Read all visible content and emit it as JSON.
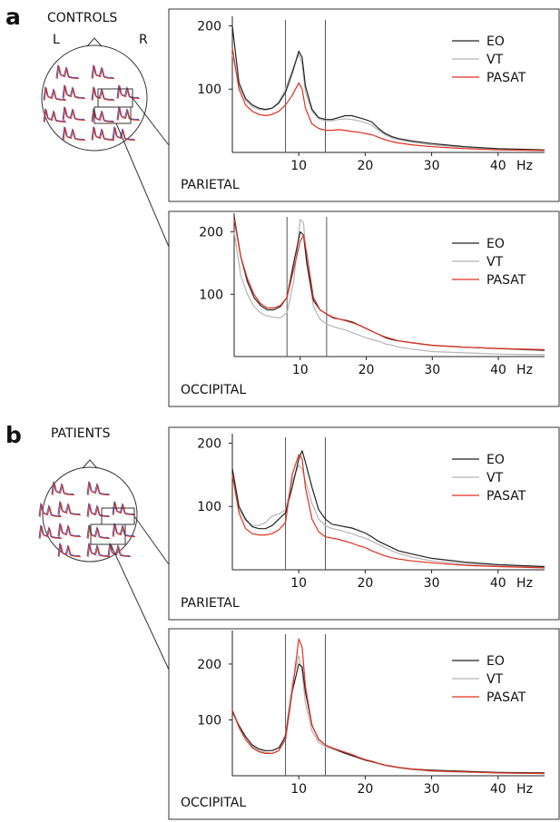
{
  "figure": {
    "groups": [
      {
        "letter": "a",
        "label": "CONTROLS",
        "left_label": "L",
        "right_label": "R"
      },
      {
        "letter": "b",
        "label": "PATIENTS"
      }
    ]
  },
  "colors": {
    "EO": "#222222",
    "VT": "#b5b5b5",
    "PASAT": "#e0301e",
    "head_trace_blue": "#3b55b8"
  },
  "chart_data": [
    {
      "type": "line",
      "group": "CONTROLS",
      "region_label": "PARIETAL",
      "xlim": [
        0,
        47
      ],
      "ylim": [
        0,
        215
      ],
      "xticks": [
        10,
        20,
        30,
        40
      ],
      "yticks": [
        100,
        200
      ],
      "x_unit_label": "Hz",
      "band_markers_hz": [
        8,
        14
      ],
      "legend": [
        "EO",
        "VT",
        "PASAT"
      ],
      "legend_position": "top-right",
      "x": [
        0,
        1,
        2,
        3,
        4,
        5,
        6,
        7,
        8,
        9,
        10,
        10.5,
        11,
        12,
        13,
        14,
        15,
        16,
        17,
        18,
        19,
        20,
        21,
        22,
        23,
        24,
        25,
        27,
        30,
        35,
        40,
        47
      ],
      "series": [
        {
          "name": "EO",
          "values": [
            200,
            110,
            85,
            75,
            70,
            68,
            70,
            78,
            95,
            125,
            160,
            150,
            105,
            68,
            55,
            52,
            52,
            55,
            58,
            58,
            55,
            52,
            48,
            38,
            30,
            25,
            22,
            18,
            14,
            9,
            6,
            4
          ]
        },
        {
          "name": "VT",
          "values": [
            155,
            105,
            82,
            72,
            68,
            67,
            70,
            80,
            100,
            130,
            155,
            140,
            95,
            65,
            53,
            50,
            50,
            52,
            53,
            52,
            50,
            47,
            43,
            35,
            28,
            23,
            20,
            16,
            12,
            8,
            5,
            3
          ]
        },
        {
          "name": "PASAT",
          "values": [
            165,
            100,
            75,
            65,
            60,
            58,
            60,
            65,
            75,
            90,
            110,
            100,
            70,
            45,
            38,
            35,
            35,
            36,
            35,
            33,
            32,
            30,
            28,
            24,
            20,
            17,
            15,
            12,
            9,
            6,
            4,
            3
          ]
        }
      ]
    },
    {
      "type": "line",
      "group": "CONTROLS",
      "region_label": "OCCIPITAL",
      "xlim": [
        0,
        47
      ],
      "ylim": [
        0,
        230
      ],
      "xticks": [
        10,
        20,
        30,
        40
      ],
      "yticks": [
        100,
        200
      ],
      "x_unit_label": "Hz",
      "band_markers_hz": [
        8,
        14
      ],
      "legend": [
        "EO",
        "VT",
        "PASAT"
      ],
      "legend_position": "top-right",
      "x": [
        0,
        1,
        2,
        3,
        4,
        5,
        6,
        7,
        8,
        9,
        10,
        10.5,
        11,
        12,
        13,
        14,
        15,
        16,
        17,
        18,
        19,
        20,
        21,
        22,
        23,
        24,
        25,
        27,
        30,
        35,
        40,
        47
      ],
      "series": [
        {
          "name": "EO",
          "values": [
            225,
            160,
            120,
            95,
            82,
            75,
            75,
            80,
            95,
            150,
            200,
            195,
            150,
            90,
            75,
            68,
            62,
            60,
            58,
            55,
            50,
            45,
            40,
            35,
            30,
            27,
            25,
            22,
            18,
            15,
            13,
            10
          ]
        },
        {
          "name": "VT",
          "values": [
            200,
            130,
            100,
            80,
            70,
            65,
            63,
            62,
            70,
            120,
            220,
            215,
            150,
            80,
            60,
            52,
            48,
            45,
            42,
            38,
            34,
            30,
            27,
            24,
            20,
            18,
            15,
            12,
            8,
            6,
            4,
            3
          ]
        },
        {
          "name": "PASAT",
          "values": [
            220,
            160,
            125,
            100,
            85,
            78,
            78,
            82,
            95,
            140,
            185,
            195,
            165,
            95,
            75,
            68,
            63,
            60,
            57,
            54,
            50,
            45,
            40,
            35,
            31,
            28,
            25,
            22,
            18,
            15,
            13,
            11
          ]
        }
      ]
    },
    {
      "type": "line",
      "group": "PATIENTS",
      "region_label": "PARIETAL",
      "xlim": [
        0,
        47
      ],
      "ylim": [
        0,
        215
      ],
      "xticks": [
        10,
        20,
        30,
        40
      ],
      "yticks": [
        100,
        200
      ],
      "x_unit_label": "Hz",
      "band_markers_hz": [
        8,
        14
      ],
      "legend": [
        "EO",
        "VT",
        "PASAT"
      ],
      "legend_position": "top-right",
      "x": [
        0,
        1,
        2,
        3,
        4,
        5,
        6,
        7,
        8,
        9,
        10,
        10.5,
        11,
        12,
        13,
        14,
        15,
        16,
        17,
        18,
        19,
        20,
        21,
        22,
        23,
        24,
        25,
        27,
        30,
        35,
        40,
        47
      ],
      "series": [
        {
          "name": "EO",
          "values": [
            160,
            100,
            80,
            68,
            65,
            65,
            70,
            80,
            90,
            130,
            175,
            188,
            170,
            130,
            95,
            80,
            72,
            70,
            68,
            66,
            62,
            58,
            52,
            45,
            40,
            35,
            30,
            25,
            18,
            12,
            8,
            5
          ]
        },
        {
          "name": "VT",
          "values": [
            150,
            95,
            78,
            70,
            70,
            75,
            85,
            88,
            95,
            140,
            165,
            160,
            140,
            105,
            80,
            70,
            65,
            63,
            60,
            57,
            53,
            50,
            45,
            40,
            35,
            30,
            26,
            20,
            14,
            9,
            6,
            4
          ]
        },
        {
          "name": "PASAT",
          "values": [
            150,
            90,
            65,
            57,
            55,
            55,
            57,
            63,
            75,
            150,
            182,
            175,
            130,
            80,
            60,
            52,
            50,
            48,
            45,
            42,
            38,
            35,
            30,
            26,
            22,
            19,
            17,
            14,
            11,
            7,
            5,
            3
          ]
        }
      ]
    },
    {
      "type": "line",
      "group": "PATIENTS",
      "region_label": "OCCIPITAL",
      "xlim": [
        0,
        47
      ],
      "ylim": [
        0,
        260
      ],
      "xticks": [
        10,
        20,
        30,
        40
      ],
      "yticks": [
        100,
        200
      ],
      "x_unit_label": "Hz",
      "band_markers_hz": [
        8,
        14
      ],
      "legend": [
        "EO",
        "VT",
        "PASAT"
      ],
      "legend_position": "top-right",
      "x": [
        0,
        1,
        2,
        3,
        4,
        5,
        6,
        7,
        8,
        9,
        10,
        10.5,
        11,
        12,
        13,
        14,
        15,
        16,
        17,
        18,
        19,
        20,
        21,
        22,
        23,
        24,
        25,
        27,
        30,
        35,
        40,
        47
      ],
      "series": [
        {
          "name": "EO",
          "values": [
            115,
            90,
            70,
            55,
            48,
            45,
            45,
            50,
            70,
            150,
            200,
            195,
            150,
            90,
            65,
            55,
            50,
            45,
            40,
            36,
            32,
            28,
            25,
            22,
            19,
            17,
            15,
            12,
            10,
            8,
            6,
            5
          ]
        },
        {
          "name": "VT",
          "values": [
            115,
            85,
            65,
            52,
            45,
            42,
            40,
            45,
            75,
            165,
            215,
            185,
            130,
            80,
            60,
            52,
            48,
            44,
            40,
            36,
            32,
            28,
            25,
            22,
            18,
            16,
            14,
            11,
            8,
            6,
            5,
            4
          ]
        },
        {
          "name": "PASAT",
          "values": [
            118,
            88,
            65,
            50,
            43,
            40,
            40,
            45,
            65,
            150,
            245,
            230,
            160,
            90,
            65,
            55,
            50,
            46,
            42,
            38,
            33,
            29,
            26,
            22,
            19,
            17,
            15,
            12,
            9,
            7,
            5,
            4
          ]
        }
      ]
    }
  ]
}
